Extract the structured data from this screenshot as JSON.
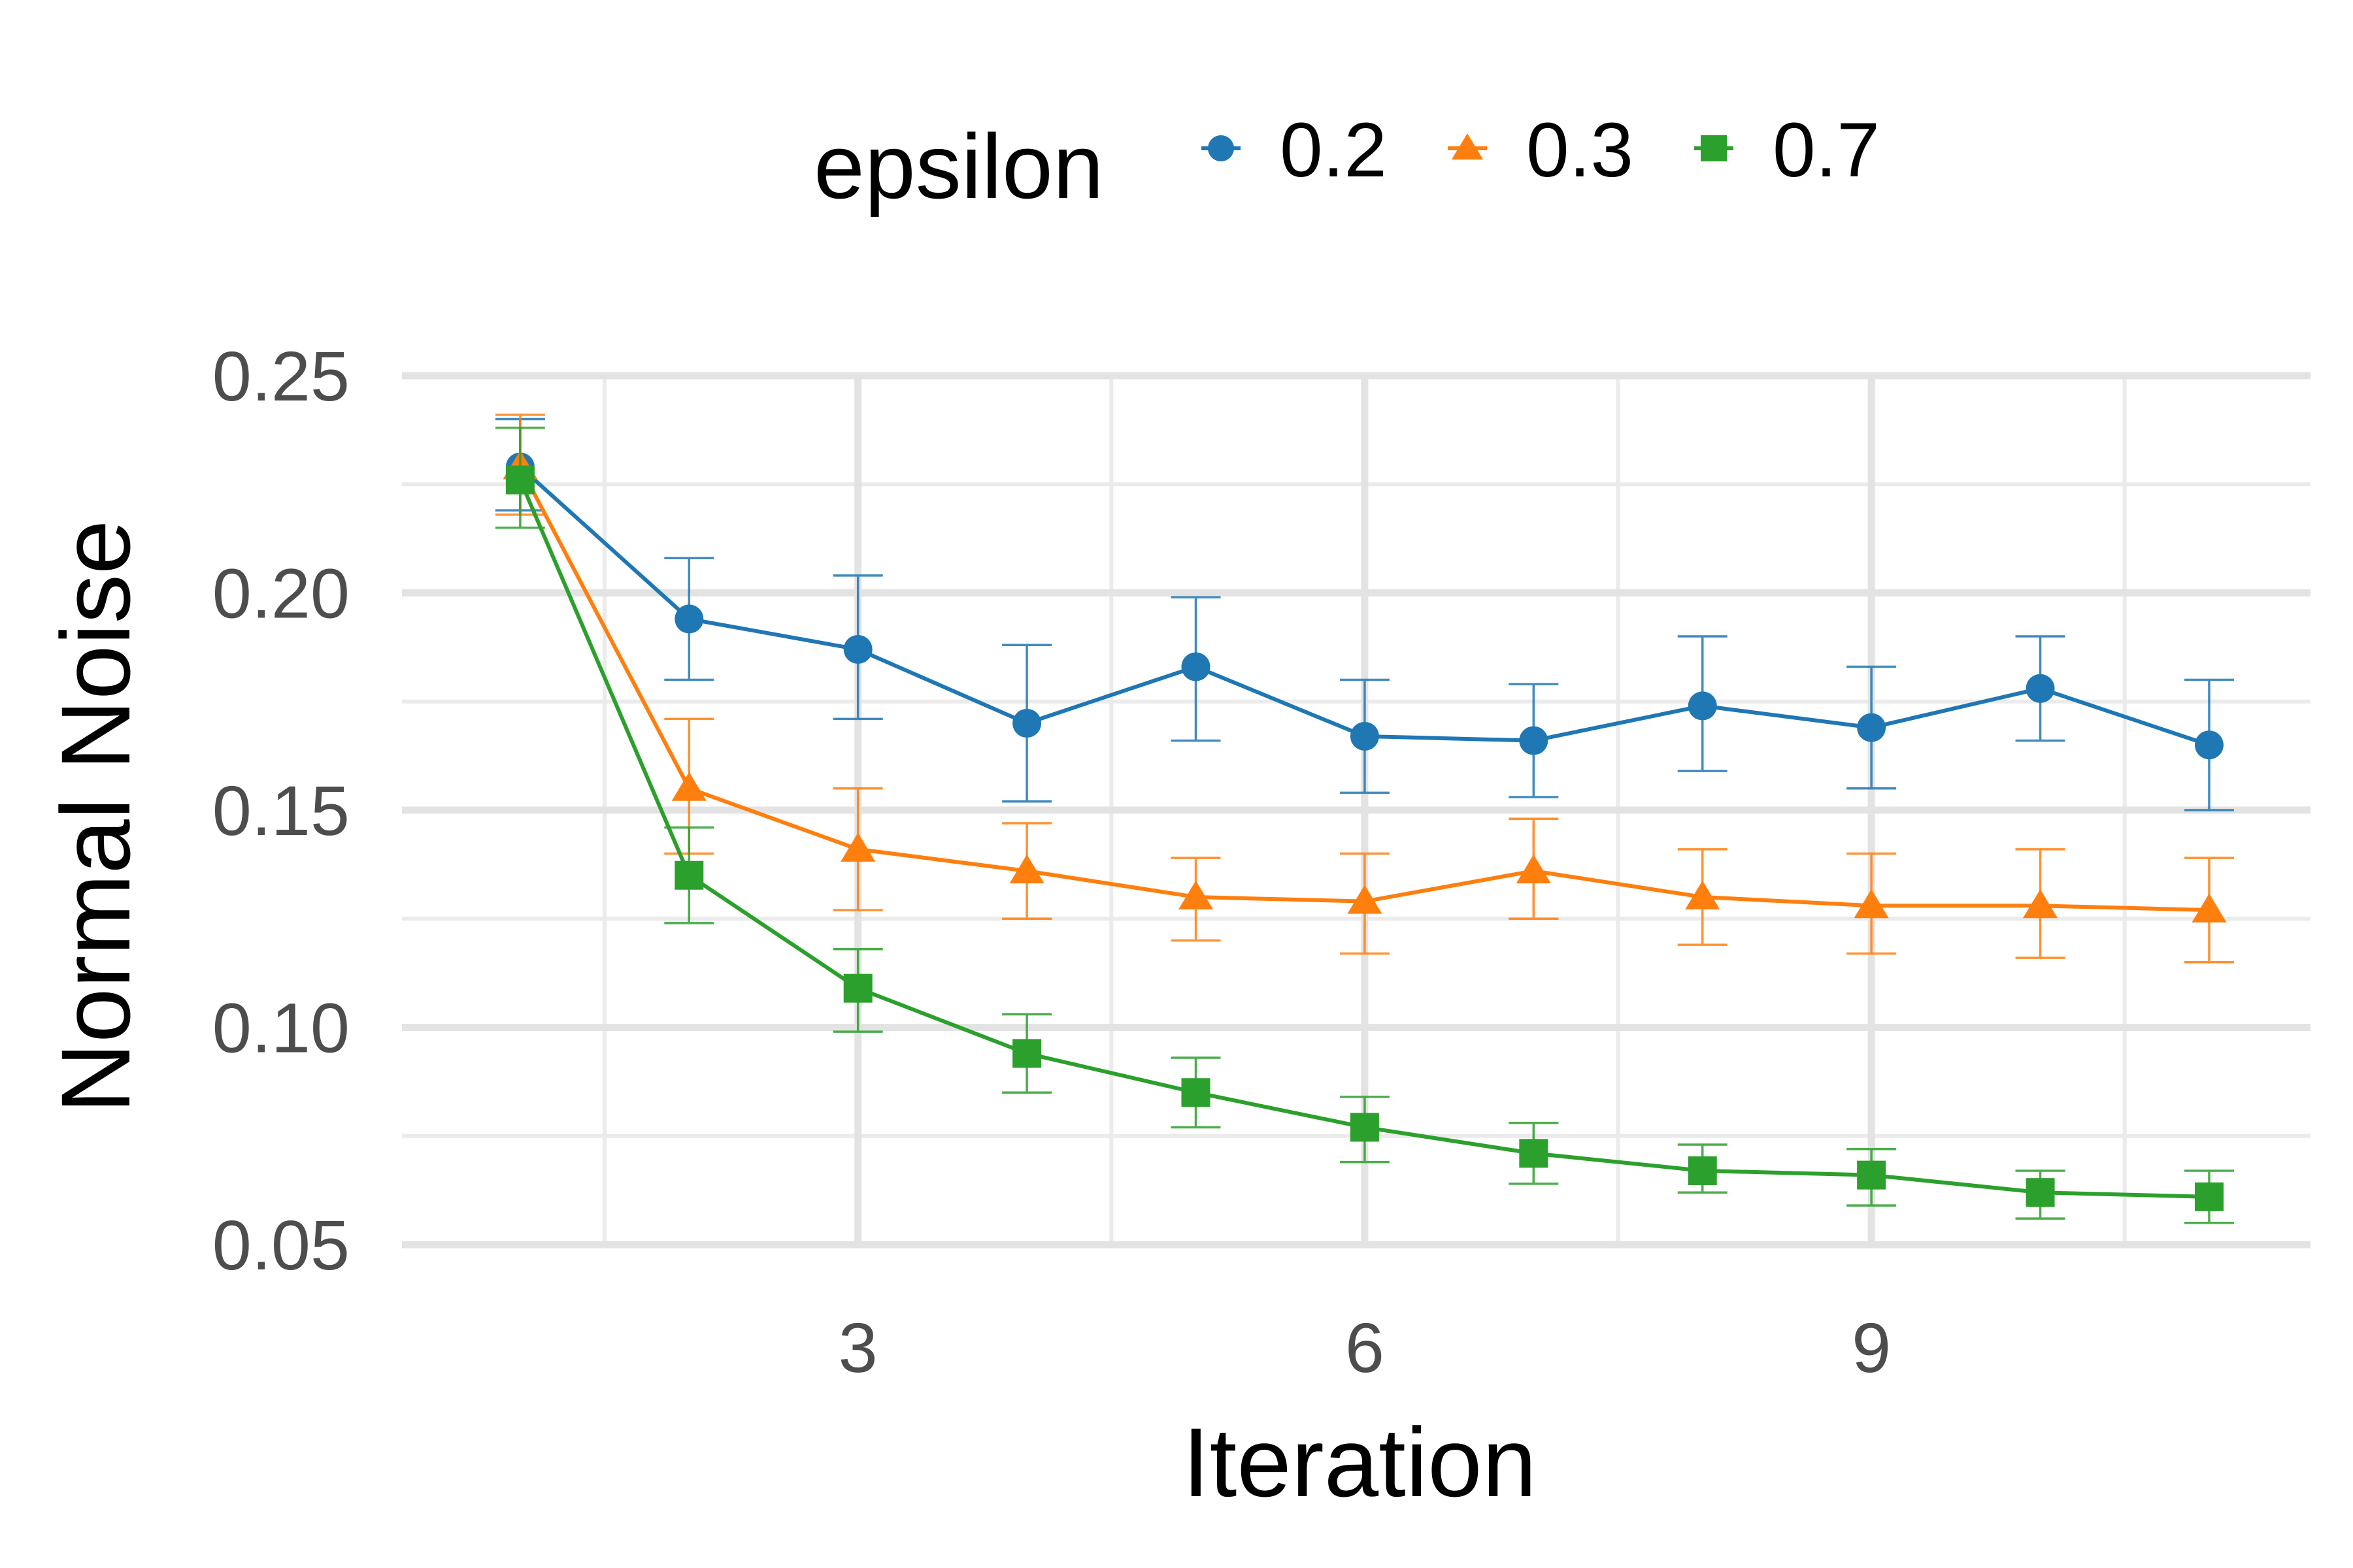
{
  "chart_data": {
    "type": "line",
    "title": "",
    "xlabel": "Iteration",
    "ylabel": "Normal Noise",
    "x": [
      1,
      2,
      3,
      4,
      5,
      6,
      7,
      8,
      9,
      10,
      11
    ],
    "x_ticks": [
      3,
      6,
      9
    ],
    "x_tick_labels": [
      "3",
      "6",
      "9"
    ],
    "xlim": [
      0.3,
      11.6
    ],
    "y_ticks": [
      0.05,
      0.1,
      0.15,
      0.2,
      0.25
    ],
    "y_tick_labels": [
      "0.05",
      "0.10",
      "0.15",
      "0.20",
      "0.25"
    ],
    "ylim": [
      0.05,
      0.25
    ],
    "grid": true,
    "legend": {
      "title": "epsilon",
      "position": "top"
    },
    "series": [
      {
        "name": "0.2",
        "color": "#1f77b4",
        "marker": "circle",
        "values": [
          0.229,
          0.194,
          0.187,
          0.17,
          0.183,
          0.167,
          0.166,
          0.174,
          0.169,
          0.178,
          0.165
        ],
        "err_low": [
          0.219,
          0.18,
          0.171,
          0.152,
          0.166,
          0.154,
          0.153,
          0.159,
          0.155,
          0.166,
          0.15
        ],
        "err_high": [
          0.24,
          0.208,
          0.204,
          0.188,
          0.199,
          0.18,
          0.179,
          0.19,
          0.183,
          0.19,
          0.18
        ]
      },
      {
        "name": "0.3",
        "color": "#ff7f0e",
        "marker": "triangle",
        "values": [
          0.229,
          0.155,
          0.141,
          0.136,
          0.13,
          0.129,
          0.136,
          0.13,
          0.128,
          0.128,
          0.127
        ],
        "err_low": [
          0.218,
          0.14,
          0.127,
          0.125,
          0.12,
          0.117,
          0.125,
          0.119,
          0.117,
          0.116,
          0.115
        ],
        "err_high": [
          0.241,
          0.171,
          0.155,
          0.147,
          0.139,
          0.14,
          0.148,
          0.141,
          0.14,
          0.141,
          0.139
        ]
      },
      {
        "name": "0.7",
        "color": "#2ca02c",
        "marker": "square",
        "values": [
          0.226,
          0.135,
          0.109,
          0.094,
          0.085,
          0.077,
          0.071,
          0.067,
          0.066,
          0.062,
          0.061
        ],
        "err_low": [
          0.215,
          0.124,
          0.099,
          0.085,
          0.077,
          0.069,
          0.064,
          0.062,
          0.059,
          0.056,
          0.055
        ],
        "err_high": [
          0.238,
          0.146,
          0.118,
          0.103,
          0.093,
          0.084,
          0.078,
          0.073,
          0.072,
          0.067,
          0.067
        ]
      }
    ]
  }
}
